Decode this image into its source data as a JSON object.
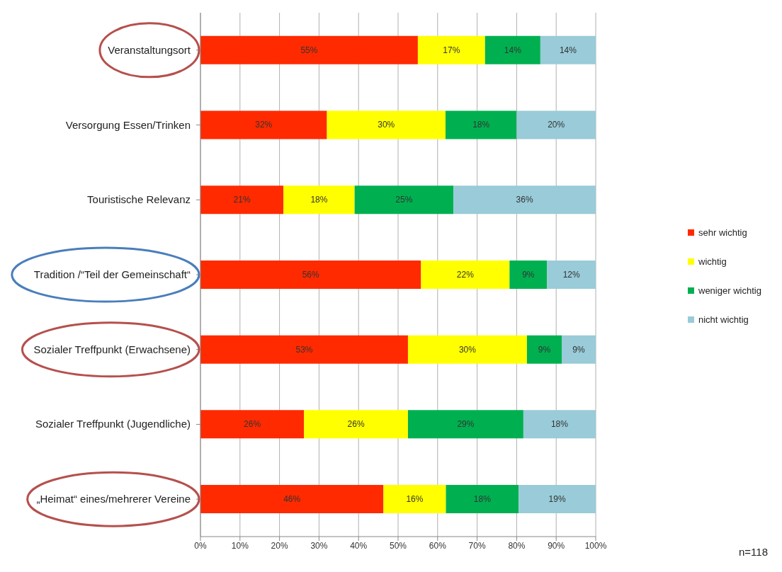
{
  "chart_data": {
    "type": "bar",
    "orientation": "horizontal",
    "stacked": true,
    "categories": [
      "Veranstaltungsort",
      "Versorgung Essen/Trinken",
      "Touristische Relevanz",
      "Tradition /“Teil der Gemeinschaft“",
      "Sozialer Treffpunkt (Erwachsene)",
      "Sozialer Treffpunkt (Jugendliche)",
      "„Heimat“ eines/mehrerer Vereine"
    ],
    "series": [
      {
        "name": "sehr wichtig",
        "color": "#ff2a00",
        "values": [
          55,
          32,
          21,
          55.8,
          52.5,
          26.2,
          46.3
        ],
        "value_labels": [
          "55%",
          "32%",
          "21%",
          "56%",
          "53%",
          "26%",
          "46%"
        ]
      },
      {
        "name": "wichtig",
        "color": "#ffff00",
        "values": [
          17,
          30,
          18,
          22.4,
          30.1,
          26.3,
          15.8
        ],
        "value_labels": [
          "17%",
          "30%",
          "18%",
          "22%",
          "30%",
          "26%",
          "16%"
        ]
      },
      {
        "name": "weniger wichtig",
        "color": "#00b050",
        "values": [
          14,
          18,
          25,
          9.5,
          8.8,
          29.2,
          18.4
        ],
        "value_labels": [
          "14%",
          "18%",
          "25%",
          "9%",
          "9%",
          "29%",
          "18%"
        ]
      },
      {
        "name": "nicht wichtig",
        "color": "#99cbd8",
        "values": [
          14,
          20,
          36,
          12.3,
          8.6,
          18.3,
          19.5
        ],
        "value_labels": [
          "14%",
          "20%",
          "36%",
          "12%",
          "9%",
          "18%",
          "19%"
        ]
      }
    ],
    "xlim": [
      0,
      100
    ],
    "xticks": [
      {
        "value": 0,
        "label": "0%"
      },
      {
        "value": 10,
        "label": "10%"
      },
      {
        "value": 20,
        "label": "20%"
      },
      {
        "value": 30,
        "label": "30%"
      },
      {
        "value": 40,
        "label": "40%"
      },
      {
        "value": 50,
        "label": "50%"
      },
      {
        "value": 60,
        "label": "60%"
      },
      {
        "value": 70,
        "label": "70%"
      },
      {
        "value": 80,
        "label": "80%"
      },
      {
        "value": 90,
        "label": "90%"
      },
      {
        "value": 100,
        "label": "100%"
      }
    ],
    "grid": "x",
    "legend": "right",
    "annotations": [
      "n=118"
    ]
  }
}
